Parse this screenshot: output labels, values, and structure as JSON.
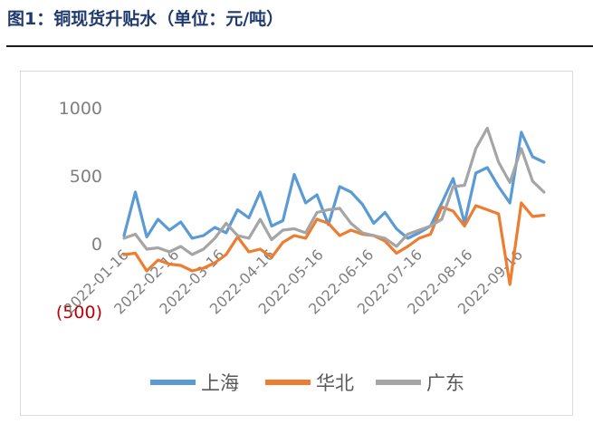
{
  "figure_title": "图1：铜现货升贴水（单位：元/吨）",
  "chart_data": {
    "type": "line",
    "title": "",
    "xlabel": "",
    "ylabel": "",
    "ylim": [
      -500,
      1000
    ],
    "y_ticks": [
      {
        "value": 1000,
        "label": "1000"
      },
      {
        "value": 500,
        "label": "500"
      },
      {
        "value": 0,
        "label": "0"
      },
      {
        "value": -500,
        "label": "(500)"
      }
    ],
    "x_tick_labels": [
      "2022-01-16",
      "2022-02-16",
      "2022-03-16",
      "2022-04-16",
      "2022-05-16",
      "2022-06-16",
      "2022-07-16",
      "2022-08-16",
      "2022-09-16"
    ],
    "x_range": [
      "2022-01-16",
      "2022-10-06"
    ],
    "legend_position": "bottom",
    "grid": false,
    "sample_dates": [
      "2022-01-16",
      "2022-01-23",
      "2022-01-30",
      "2022-02-06",
      "2022-02-13",
      "2022-02-20",
      "2022-02-27",
      "2022-03-06",
      "2022-03-13",
      "2022-03-20",
      "2022-03-27",
      "2022-04-03",
      "2022-04-10",
      "2022-04-17",
      "2022-04-24",
      "2022-05-01",
      "2022-05-08",
      "2022-05-15",
      "2022-05-22",
      "2022-05-29",
      "2022-06-05",
      "2022-06-12",
      "2022-06-19",
      "2022-06-26",
      "2022-07-03",
      "2022-07-10",
      "2022-07-17",
      "2022-07-24",
      "2022-07-31",
      "2022-08-07",
      "2022-08-14",
      "2022-08-21",
      "2022-08-28",
      "2022-09-04",
      "2022-09-11",
      "2022-09-18",
      "2022-09-25",
      "2022-10-02"
    ],
    "series": [
      {
        "name": "上海",
        "color": "#5b9bd5",
        "values": [
          60,
          380,
          50,
          180,
          100,
          160,
          40,
          60,
          120,
          80,
          250,
          190,
          380,
          130,
          170,
          510,
          300,
          360,
          140,
          420,
          380,
          290,
          150,
          230,
          110,
          40,
          80,
          130,
          300,
          480,
          150,
          520,
          560,
          420,
          300,
          820,
          640,
          600
        ]
      },
      {
        "name": "华北",
        "color": "#ed7d31",
        "values": [
          -80,
          -70,
          -200,
          -120,
          -150,
          -160,
          -200,
          -180,
          -140,
          -80,
          50,
          -60,
          -40,
          -100,
          10,
          60,
          40,
          180,
          150,
          60,
          100,
          70,
          60,
          20,
          -70,
          -20,
          40,
          70,
          270,
          240,
          130,
          280,
          250,
          220,
          -300,
          300,
          200,
          210
        ]
      },
      {
        "name": "广东",
        "color": "#a5a5a5",
        "values": [
          40,
          70,
          -40,
          -30,
          -60,
          -20,
          -80,
          -40,
          40,
          150,
          60,
          40,
          180,
          30,
          100,
          110,
          80,
          230,
          250,
          260,
          150,
          80,
          60,
          40,
          -20,
          70,
          100,
          130,
          180,
          420,
          430,
          700,
          850,
          600,
          450,
          700,
          460,
          380
        ]
      }
    ]
  }
}
